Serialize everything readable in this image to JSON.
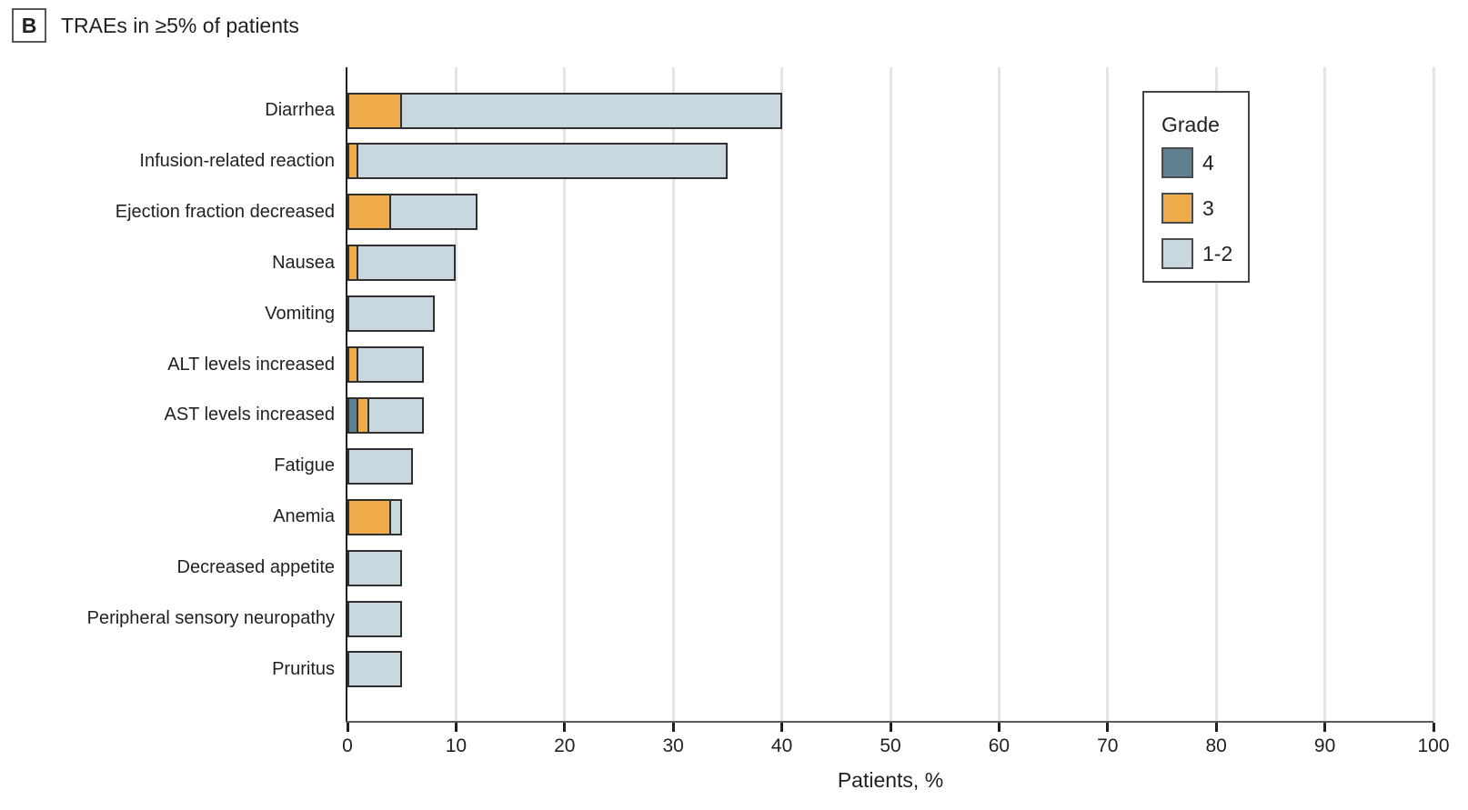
{
  "panel": {
    "label": "B",
    "title": "TRAEs in ≥5% of patients"
  },
  "chart_data": {
    "type": "bar",
    "orientation": "horizontal",
    "stacked": true,
    "title": "TRAEs in ≥5% of patients",
    "xlabel": "Patients, %",
    "xlim": [
      0,
      100
    ],
    "xticks": [
      0,
      10,
      20,
      30,
      40,
      50,
      60,
      70,
      80,
      90,
      100
    ],
    "grid": true,
    "categories": [
      "Diarrhea",
      "Infusion-related reaction",
      "Ejection fraction decreased",
      "Nausea",
      "Vomiting",
      "ALT levels increased",
      "AST levels increased",
      "Fatigue",
      "Anemia",
      "Decreased appetite",
      "Peripheral sensory neuropathy",
      "Pruritus"
    ],
    "series": [
      {
        "name": "4",
        "color": "#5f808e",
        "values": [
          0,
          0,
          0,
          0,
          0,
          0,
          1,
          0,
          0,
          0,
          0,
          0
        ]
      },
      {
        "name": "3",
        "color": "#f0ab4b",
        "values": [
          5,
          1,
          4,
          1,
          0,
          1,
          1,
          0,
          4,
          0,
          0,
          0
        ]
      },
      {
        "name": "1-2",
        "color": "#c8d8de",
        "values": [
          35,
          34,
          8,
          9,
          8,
          6,
          5,
          6,
          1,
          5,
          5,
          5
        ]
      }
    ],
    "totals": [
      40,
      35,
      12,
      10,
      8,
      7,
      7,
      6,
      5,
      5,
      5,
      5
    ],
    "legend": {
      "title": "Grade",
      "position": "top-right",
      "entries": [
        "4",
        "3",
        "1-2"
      ]
    }
  }
}
